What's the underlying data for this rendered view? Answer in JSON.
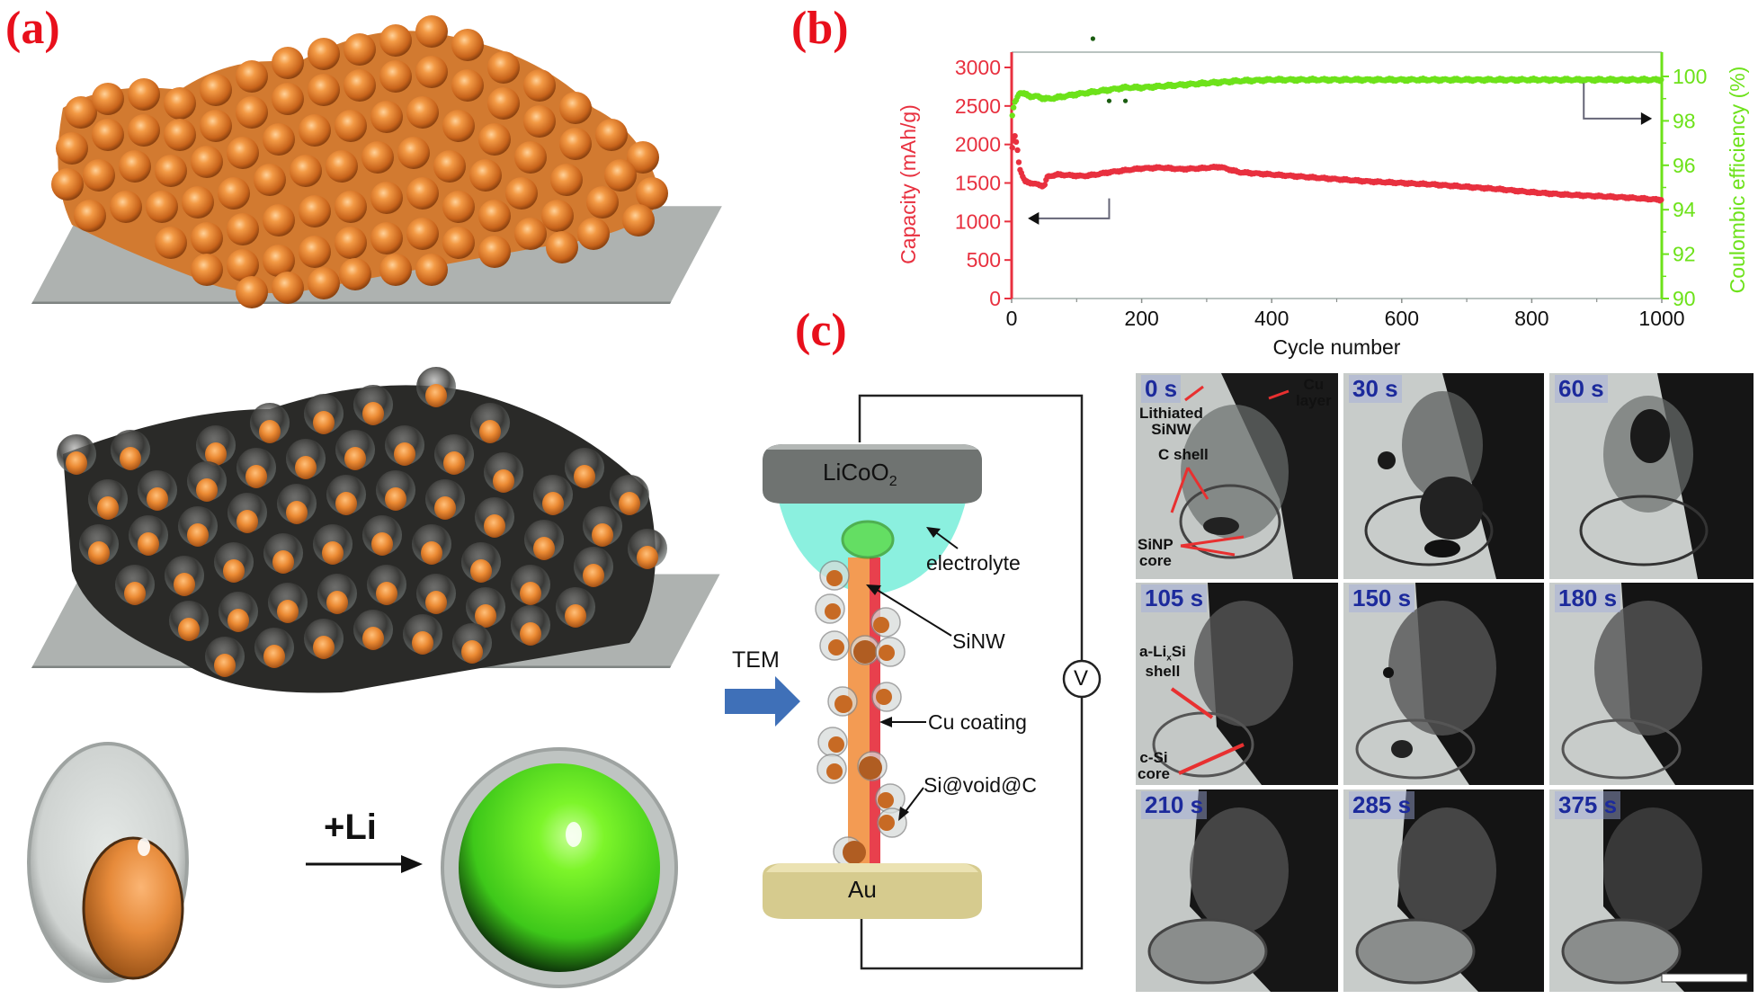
{
  "figure": {
    "panels": {
      "a": {
        "label": "(a)",
        "transition_label": "+Li"
      },
      "b": {
        "label": "(b)"
      },
      "c": {
        "label": "(c)"
      }
    }
  },
  "chart_data": {
    "type": "scatter",
    "title": "",
    "xlabel": "Cycle number",
    "ylabel": "Capacity (mAh/g)",
    "y2label": "Coulombic efficiency (%)",
    "xlim": [
      0,
      1000
    ],
    "ylim": [
      0,
      3000
    ],
    "y2lim": [
      90,
      100
    ],
    "xticks": [
      "0",
      "200",
      "400",
      "600",
      "800",
      "1000"
    ],
    "yticks": [
      "0",
      "500",
      "1000",
      "1500",
      "2000",
      "2500",
      "3000"
    ],
    "y2ticks": [
      "90",
      "92",
      "94",
      "96",
      "98",
      "100"
    ],
    "grid": false,
    "colors": {
      "capacity": "#e8303f",
      "efficiency": "#6de21a",
      "left_axis": "#e8303f",
      "right_axis": "#6de21a"
    },
    "series": [
      {
        "name": "Capacity (mAh/g)",
        "axis": "left",
        "x": [
          1,
          3,
          5,
          8,
          12,
          20,
          30,
          40,
          50,
          55,
          70,
          90,
          110,
          130,
          150,
          180,
          200,
          230,
          260,
          290,
          320,
          350,
          400,
          450,
          500,
          550,
          600,
          650,
          700,
          750,
          800,
          850,
          900,
          950,
          1000
        ],
        "values": [
          1950,
          2050,
          2100,
          2000,
          1700,
          1520,
          1500,
          1480,
          1460,
          1580,
          1610,
          1600,
          1590,
          1610,
          1640,
          1670,
          1690,
          1700,
          1680,
          1690,
          1710,
          1640,
          1610,
          1580,
          1550,
          1520,
          1500,
          1480,
          1450,
          1420,
          1380,
          1350,
          1330,
          1310,
          1280
        ]
      },
      {
        "name": "Coulombic efficiency (%)",
        "axis": "right",
        "x": [
          1,
          3,
          5,
          8,
          12,
          20,
          30,
          40,
          50,
          60,
          80,
          100,
          125,
          150,
          175,
          200,
          250,
          300,
          350,
          400,
          500,
          600,
          700,
          800,
          900,
          1000
        ],
        "values": [
          98.2,
          98.6,
          98.8,
          99.0,
          99.3,
          99.2,
          99.1,
          99.1,
          99.0,
          99.0,
          99.1,
          99.2,
          99.3,
          99.4,
          99.5,
          99.5,
          99.6,
          99.7,
          99.8,
          99.85,
          99.85,
          99.85,
          99.85,
          99.85,
          99.85,
          99.85
        ]
      }
    ],
    "outliers": [
      {
        "series": "Coulombic efficiency (%)",
        "x": 125,
        "value": 101.7
      },
      {
        "series": "Coulombic efficiency (%)",
        "x": 150,
        "value": 98.9
      },
      {
        "series": "Coulombic efficiency (%)",
        "x": 175,
        "value": 98.9
      }
    ],
    "annotations": [
      {
        "type": "arrow",
        "direction": "left",
        "points_to": "Capacity axis",
        "from_cycle": 150
      },
      {
        "type": "arrow",
        "direction": "right",
        "points_to": "Coulombic efficiency axis",
        "from_cycle": 880
      }
    ]
  },
  "schematic": {
    "cathode": "LiCoO",
    "cathode_sub": "2",
    "anode": "Au",
    "meter": "V",
    "beam_label": "TEM",
    "labels": {
      "electrolyte": "electrolyte",
      "sinw": "SiNW",
      "cu_coating": "Cu coating",
      "particle": "Si@void@C"
    },
    "colors": {
      "electrolyte": "#7ff0d4",
      "wire": "#f19a4e",
      "wire_edge": "#e8424f",
      "beam": "#3e6fb5",
      "cathode": "#707372",
      "anode": "#d9cf95"
    }
  },
  "tem": {
    "frames": [
      {
        "time": "0 s"
      },
      {
        "time": "30 s"
      },
      {
        "time": "60 s"
      },
      {
        "time": "105 s"
      },
      {
        "time": "150 s"
      },
      {
        "time": "180 s"
      },
      {
        "time": "210 s"
      },
      {
        "time": "285 s"
      },
      {
        "time": "375 s"
      }
    ],
    "annotations_0s": {
      "lithiated": "Lithiated",
      "sinw": "SiNW",
      "cu1": "Cu",
      "cu2": "layer",
      "cshell": "C shell",
      "sinp": "SiNP",
      "core": "core"
    },
    "annotations_105s": {
      "alisi_a": "a-Li",
      "alisi_x": "x",
      "alisi_b": "Si",
      "shell": "shell",
      "csi": "c-Si",
      "core": "core"
    }
  }
}
